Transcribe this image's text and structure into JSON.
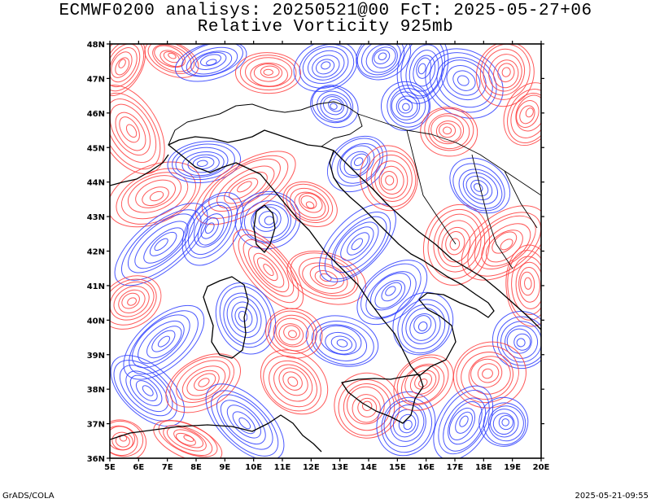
{
  "title_line1": "ECMWF0200 analisys: 20250521@00 FcT: 2025-05-27+06",
  "title_line2": "Relative Vorticity 925mb",
  "lat_ticks": [
    "48N",
    "47N",
    "46N",
    "45N",
    "44N",
    "43N",
    "42N",
    "41N",
    "40N",
    "39N",
    "38N",
    "37N",
    "36N"
  ],
  "lon_ticks": [
    "5E",
    "6E",
    "7E",
    "8E",
    "9E",
    "10E",
    "11E",
    "12E",
    "13E",
    "14E",
    "15E",
    "16E",
    "17E",
    "18E",
    "19E",
    "20E"
  ],
  "footer_left": "GrADS/COLA",
  "footer_right": "2025-05-21-09:55",
  "colors": {
    "positive": "#ff3b3b",
    "negative": "#2a3bff",
    "coast": "#000000",
    "frame": "#000000"
  },
  "map_extent": {
    "lon": [
      5,
      20
    ],
    "lat": [
      36,
      48
    ]
  }
}
